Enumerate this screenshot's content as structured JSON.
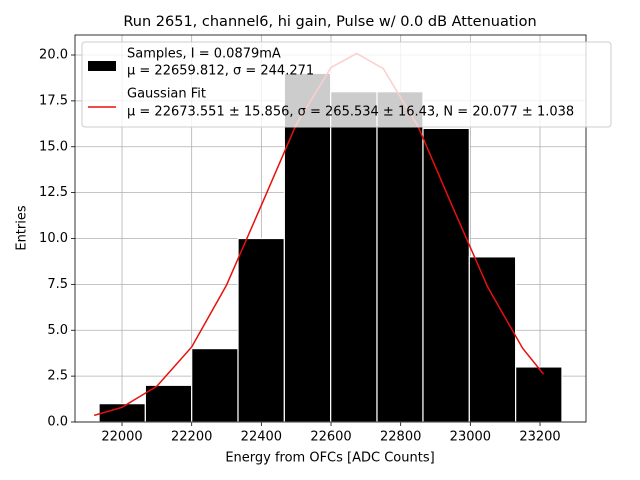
{
  "chart_data": {
    "type": "histogram",
    "title": "Run 2651, channel6, hi gain, Pulse w/ 0.0 dB Attenuation",
    "x_label": "Energy from OFCs [ADC Counts]",
    "y_label": "Entries",
    "xlim": [
      21865,
      23332
    ],
    "ylim": [
      0,
      21.09
    ],
    "xticks": [
      22000,
      22200,
      22400,
      22600,
      22800,
      23000,
      23200
    ],
    "yticks": [
      {
        "value": 0,
        "label": "0.0"
      },
      {
        "value": 2.5,
        "label": "2.5"
      },
      {
        "value": 5,
        "label": "5.0"
      },
      {
        "value": 7.5,
        "label": "7.5"
      },
      {
        "value": 10,
        "label": "10.0"
      },
      {
        "value": 12.5,
        "label": "12.5"
      },
      {
        "value": 15,
        "label": "15.0"
      },
      {
        "value": 17.5,
        "label": "17.5"
      },
      {
        "value": 20,
        "label": "20.0"
      }
    ],
    "grid": true,
    "legend": "upper right",
    "histogram": {
      "name": "Samples, I = 0.0879mA",
      "stats": "μ = 22659.812, σ = 244.271",
      "color": "#000000",
      "edgecolor": "#ffffff",
      "bins": [
        21934,
        22067,
        22200,
        22333,
        22466,
        22599,
        22732,
        22864,
        22997,
        23130,
        23263
      ],
      "values": [
        1,
        2,
        4,
        10,
        19,
        18,
        18,
        16,
        9,
        3
      ]
    },
    "fit": {
      "name": "Gaussian Fit",
      "stats": "μ = 22673.551 ± 15.856, σ = 265.534 ± 16.43, N = 20.077 ± 1.038",
      "color": "#e8100c",
      "x": [
        21920,
        22000,
        22100,
        22200,
        22300,
        22400,
        22500,
        22600,
        22673.551,
        22750,
        22850,
        22950,
        23050,
        23150,
        23210
      ],
      "values": [
        0.36,
        0.8,
        1.95,
        4.09,
        7.46,
        11.81,
        16.21,
        19.32,
        20.08,
        19.26,
        16.1,
        11.68,
        7.35,
        4.02,
        2.61
      ]
    }
  }
}
